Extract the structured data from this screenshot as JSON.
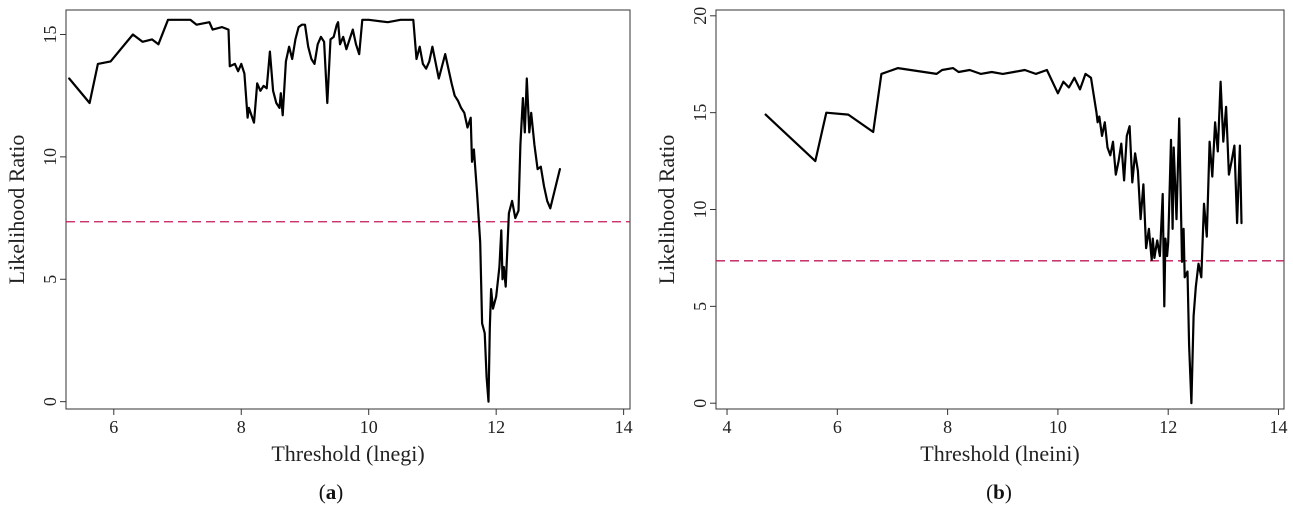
{
  "panels": [
    {
      "caption_letter": "a",
      "chart_data": {
        "type": "line",
        "title": "",
        "xlabel": "Threshold (lnegi)",
        "ylabel": "Likelihood Ratio",
        "xlim": [
          5.25,
          14.1
        ],
        "ylim": [
          -0.3,
          16.0
        ],
        "xticks": [
          6,
          8,
          10,
          12,
          14
        ],
        "yticks": [
          0,
          5,
          10,
          15
        ],
        "grid": false,
        "reference_line": {
          "y": 7.35,
          "style": "dashed",
          "color": "#c2185b"
        },
        "line_color": "#000000",
        "series": [
          {
            "x": [
              5.3,
              5.62,
              5.75,
              5.95,
              6.3,
              6.45,
              6.6,
              6.7,
              6.85,
              7.2,
              7.3,
              7.5,
              7.55,
              7.7,
              7.8,
              7.82,
              7.9,
              7.95,
              8.0,
              8.05,
              8.1,
              8.12,
              8.2,
              8.25,
              8.3,
              8.35,
              8.4,
              8.45,
              8.5,
              8.55,
              8.6,
              8.62,
              8.65,
              8.7,
              8.75,
              8.8,
              8.85,
              8.9,
              8.95,
              9.0,
              9.05,
              9.1,
              9.15,
              9.2,
              9.25,
              9.3,
              9.35,
              9.4,
              9.45,
              9.5,
              9.52,
              9.55,
              9.6,
              9.65,
              9.7,
              9.75,
              9.8,
              9.85,
              9.9,
              9.95,
              10.0,
              10.3,
              10.5,
              10.7,
              10.75,
              10.8,
              10.85,
              10.9,
              10.95,
              11.0,
              11.1,
              11.2,
              11.3,
              11.35,
              11.4,
              11.45,
              11.5,
              11.55,
              11.6,
              11.62,
              11.65,
              11.7,
              11.75,
              11.78,
              11.82,
              11.85,
              11.88,
              11.9,
              11.92,
              11.95,
              12.0,
              12.05,
              12.08,
              12.1,
              12.12,
              12.15,
              12.2,
              12.25,
              12.3,
              12.35,
              12.38,
              12.42,
              12.45,
              12.48,
              12.52,
              12.55,
              12.6,
              12.65,
              12.7,
              12.75,
              12.8,
              12.85,
              13.0
            ],
            "y": [
              13.2,
              12.2,
              13.8,
              13.9,
              15.0,
              14.7,
              14.8,
              14.6,
              15.6,
              15.6,
              15.4,
              15.5,
              15.2,
              15.3,
              15.2,
              13.7,
              13.8,
              13.5,
              13.8,
              13.4,
              11.6,
              12.0,
              11.4,
              13.0,
              12.7,
              12.9,
              12.8,
              14.3,
              12.7,
              12.2,
              12.0,
              12.6,
              11.7,
              13.9,
              14.5,
              14.0,
              14.8,
              15.3,
              15.4,
              15.4,
              14.5,
              14.0,
              13.8,
              14.6,
              14.9,
              14.7,
              12.2,
              14.8,
              14.9,
              15.4,
              15.5,
              14.6,
              14.9,
              14.4,
              14.8,
              15.2,
              14.6,
              14.2,
              15.6,
              15.6,
              15.6,
              15.5,
              15.6,
              15.6,
              14.0,
              14.5,
              13.8,
              13.6,
              13.9,
              14.5,
              13.2,
              14.2,
              13.0,
              12.5,
              12.3,
              12.0,
              11.8,
              11.2,
              11.6,
              9.8,
              10.3,
              8.5,
              6.5,
              3.2,
              2.8,
              1.0,
              0.0,
              3.0,
              4.6,
              3.8,
              4.3,
              5.5,
              7.0,
              5.0,
              5.5,
              4.7,
              7.7,
              8.2,
              7.5,
              7.8,
              10.5,
              12.4,
              11.0,
              13.2,
              11.0,
              11.8,
              10.5,
              9.5,
              9.6,
              8.8,
              8.2,
              7.9,
              9.5
            ]
          }
        ]
      }
    },
    {
      "caption_letter": "b",
      "chart_data": {
        "type": "line",
        "title": "",
        "xlabel": "Threshold (lneini)",
        "ylabel": "Likelihood Ratio",
        "xlim": [
          3.8,
          14.1
        ],
        "ylim": [
          -0.3,
          20.3
        ],
        "xticks": [
          4,
          6,
          8,
          10,
          12,
          14
        ],
        "yticks": [
          0,
          5,
          10,
          15,
          20
        ],
        "grid": false,
        "reference_line": {
          "y": 7.35,
          "style": "dashed",
          "color": "#c2185b"
        },
        "line_color": "#000000",
        "series": [
          {
            "x": [
              4.7,
              5.6,
              5.8,
              6.2,
              6.65,
              6.8,
              7.1,
              7.8,
              7.9,
              8.1,
              8.2,
              8.4,
              8.6,
              8.8,
              9.0,
              9.2,
              9.4,
              9.6,
              9.8,
              10.0,
              10.1,
              10.2,
              10.3,
              10.4,
              10.5,
              10.6,
              10.7,
              10.72,
              10.75,
              10.8,
              10.85,
              10.9,
              10.95,
              11.0,
              11.05,
              11.1,
              11.15,
              11.2,
              11.25,
              11.3,
              11.35,
              11.4,
              11.45,
              11.5,
              11.55,
              11.6,
              11.65,
              11.7,
              11.72,
              11.75,
              11.8,
              11.85,
              11.9,
              11.93,
              11.95,
              11.98,
              12.0,
              12.05,
              12.08,
              12.1,
              12.15,
              12.2,
              12.25,
              12.28,
              12.3,
              12.35,
              12.38,
              12.42,
              12.46,
              12.5,
              12.55,
              12.6,
              12.65,
              12.7,
              12.75,
              12.8,
              12.85,
              12.9,
              12.95,
              13.0,
              13.05,
              13.1,
              13.15,
              13.2,
              13.25,
              13.3,
              13.33
            ],
            "y": [
              14.9,
              12.5,
              15.0,
              14.9,
              14.0,
              17.0,
              17.3,
              17.0,
              17.2,
              17.3,
              17.1,
              17.2,
              17.0,
              17.1,
              17.0,
              17.1,
              17.2,
              17.0,
              17.2,
              16.0,
              16.6,
              16.3,
              16.8,
              16.2,
              17.0,
              16.8,
              15.0,
              14.5,
              14.8,
              13.8,
              14.5,
              13.2,
              12.8,
              13.5,
              11.8,
              12.5,
              13.4,
              11.5,
              13.8,
              14.3,
              11.4,
              12.9,
              12.0,
              9.5,
              11.3,
              8.0,
              9.0,
              7.4,
              8.5,
              7.5,
              8.4,
              7.6,
              10.8,
              5.0,
              8.5,
              7.6,
              8.3,
              13.6,
              9.0,
              13.2,
              9.5,
              14.7,
              7.3,
              9.0,
              6.5,
              6.8,
              3.0,
              0.0,
              4.5,
              6.0,
              7.2,
              6.5,
              10.3,
              8.6,
              13.5,
              11.7,
              14.5,
              13.0,
              16.6,
              13.5,
              15.3,
              11.8,
              12.5,
              13.3,
              9.3,
              13.3,
              9.3
            ]
          }
        ]
      }
    }
  ]
}
